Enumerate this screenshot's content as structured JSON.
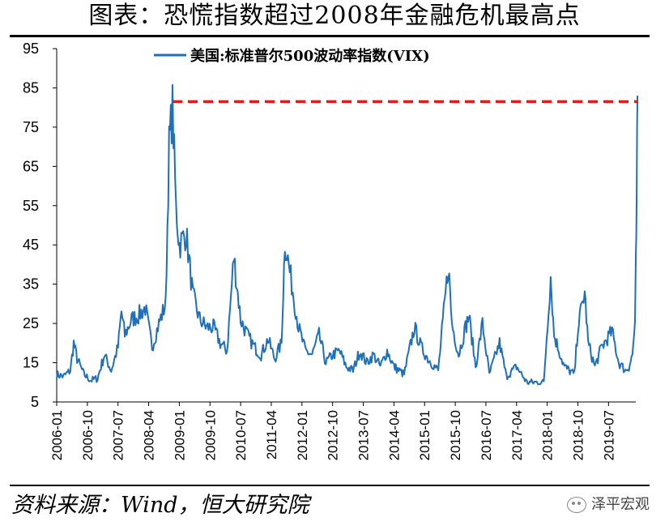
{
  "header": {
    "title": "图表：恐慌指数超过2008年金融危机最高点"
  },
  "footer": {
    "source": "资料来源：Wind，恒大研究院",
    "watermark_text": "泽平宏观",
    "watermark_icon": "wechat-icon"
  },
  "chart_data": {
    "type": "line",
    "title": "",
    "xlabel": "",
    "ylabel": "",
    "ylim": [
      5,
      95
    ],
    "yticks": [
      5,
      15,
      25,
      35,
      45,
      55,
      65,
      75,
      85,
      95
    ],
    "xticks": [
      "2006-01",
      "2006-10",
      "2007-07",
      "2008-04",
      "2009-01",
      "2009-10",
      "2010-07",
      "2011-04",
      "2012-01",
      "2012-10",
      "2013-07",
      "2014-04",
      "2015-01",
      "2015-10",
      "2016-07",
      "2017-04",
      "2018-01",
      "2018-10",
      "2019-07"
    ],
    "xlim": [
      "2006-01",
      "2020-03"
    ],
    "legend_position": "top",
    "grid": false,
    "series": [
      {
        "name": "美国:标准普尔500波动率指数(VIX)",
        "color": "#1f6fba",
        "points": [
          [
            "2006-01",
            12
          ],
          [
            "2006-03",
            11.5
          ],
          [
            "2006-05",
            13
          ],
          [
            "2006-06",
            20
          ],
          [
            "2006-07",
            16
          ],
          [
            "2006-09",
            12
          ],
          [
            "2006-11",
            10.5
          ],
          [
            "2007-01",
            11
          ],
          [
            "2007-02",
            14
          ],
          [
            "2007-03",
            17
          ],
          [
            "2007-05",
            13
          ],
          [
            "2007-07",
            19
          ],
          [
            "2007-08",
            28
          ],
          [
            "2007-09",
            22
          ],
          [
            "2007-11",
            26
          ],
          [
            "2008-01",
            27
          ],
          [
            "2008-03",
            29
          ],
          [
            "2008-05",
            19
          ],
          [
            "2008-07",
            25
          ],
          [
            "2008-09",
            30
          ],
          [
            "2008-10",
            70
          ],
          [
            "2008-11",
            80
          ],
          [
            "2008-12",
            55
          ],
          [
            "2009-01",
            45
          ],
          [
            "2009-03",
            48
          ],
          [
            "2009-05",
            32
          ],
          [
            "2009-07",
            26
          ],
          [
            "2009-09",
            24
          ],
          [
            "2009-11",
            24
          ],
          [
            "2010-01",
            20
          ],
          [
            "2010-03",
            18
          ],
          [
            "2010-05",
            42
          ],
          [
            "2010-07",
            26
          ],
          [
            "2010-09",
            22
          ],
          [
            "2010-11",
            19
          ],
          [
            "2011-01",
            17
          ],
          [
            "2011-03",
            21
          ],
          [
            "2011-05",
            16
          ],
          [
            "2011-07",
            20
          ],
          [
            "2011-08",
            46
          ],
          [
            "2011-10",
            35
          ],
          [
            "2011-12",
            24
          ],
          [
            "2012-02",
            18
          ],
          [
            "2012-04",
            17
          ],
          [
            "2012-06",
            22
          ],
          [
            "2012-08",
            15
          ],
          [
            "2012-10",
            17
          ],
          [
            "2012-12",
            18
          ],
          [
            "2013-02",
            14
          ],
          [
            "2013-04",
            13
          ],
          [
            "2013-06",
            18
          ],
          [
            "2013-08",
            15
          ],
          [
            "2013-10",
            17
          ],
          [
            "2013-12",
            14
          ],
          [
            "2014-02",
            18
          ],
          [
            "2014-04",
            14
          ],
          [
            "2014-07",
            12
          ],
          [
            "2014-10",
            24
          ],
          [
            "2014-12",
            19
          ],
          [
            "2015-02",
            16
          ],
          [
            "2015-05",
            13
          ],
          [
            "2015-08",
            40
          ],
          [
            "2015-09",
            25
          ],
          [
            "2015-11",
            17
          ],
          [
            "2016-01",
            24
          ],
          [
            "2016-02",
            27
          ],
          [
            "2016-04",
            14
          ],
          [
            "2016-06",
            25
          ],
          [
            "2016-08",
            12
          ],
          [
            "2016-11",
            20
          ],
          [
            "2017-01",
            11.5
          ],
          [
            "2017-04",
            14
          ],
          [
            "2017-07",
            10
          ],
          [
            "2017-10",
            10
          ],
          [
            "2017-12",
            10
          ],
          [
            "2018-02",
            37
          ],
          [
            "2018-03",
            22
          ],
          [
            "2018-06",
            14
          ],
          [
            "2018-09",
            12
          ],
          [
            "2018-10",
            24
          ],
          [
            "2018-12",
            33
          ],
          [
            "2019-01",
            20
          ],
          [
            "2019-03",
            14
          ],
          [
            "2019-05",
            19
          ],
          [
            "2019-08",
            23
          ],
          [
            "2019-10",
            15
          ],
          [
            "2019-12",
            13
          ],
          [
            "2020-01",
            14
          ],
          [
            "2020-02",
            17
          ],
          [
            "2020-02-24",
            25
          ],
          [
            "2020-03-02",
            40
          ],
          [
            "2020-03-09",
            55
          ],
          [
            "2020-03-16",
            83
          ]
        ]
      },
      {
        "name": "",
        "style": "dashed",
        "color": "#e31b1b",
        "points": [
          [
            "2008-11",
            81.5
          ],
          [
            "2020-03-16",
            81.5
          ]
        ]
      }
    ]
  }
}
